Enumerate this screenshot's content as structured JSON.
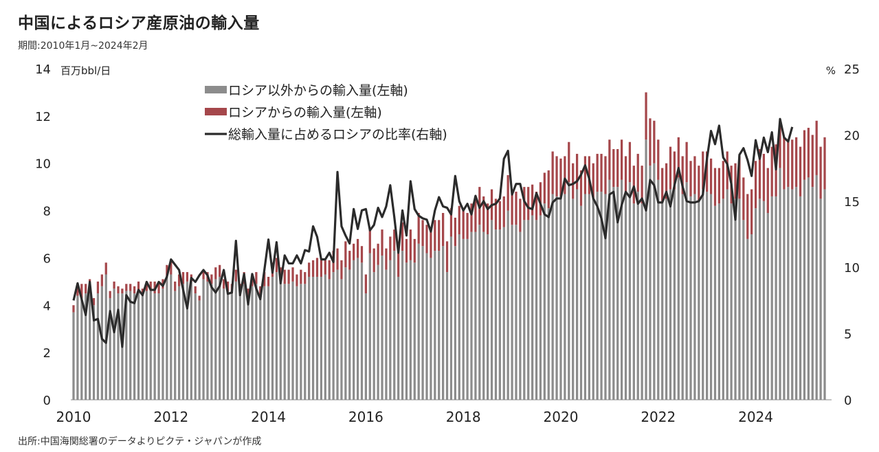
{
  "title": "中国によるロシア産原油の輸入量",
  "subtitle": "期間:2010年1月~2024年2月",
  "source": "出所:中国海関総署のデータよりピクテ・ジャパンが作成",
  "colors": {
    "other": "#8c8c8c",
    "russia": "#a5474b",
    "ratio": "#2b2b2b",
    "axis": "#888888"
  },
  "chart_data": {
    "type": "bar",
    "stacked": true,
    "period": [
      "2010-01",
      "2024-02"
    ],
    "x_tick_labels": [
      "2010",
      "2012",
      "2014",
      "2016",
      "2018",
      "2020",
      "2022",
      "2024"
    ],
    "y_left": {
      "unit": "百万bbl/日",
      "range": [
        0,
        14
      ],
      "ticks": [
        "0",
        "2",
        "4",
        "6",
        "8",
        "10",
        "12",
        "14"
      ]
    },
    "y_right": {
      "unit": "%",
      "range": [
        0,
        25
      ],
      "ticks": [
        "0",
        "5",
        "10",
        "15",
        "20",
        "25"
      ]
    },
    "legend": [
      "ロシア以外からの輸入量(左軸)",
      "ロシアからの輸入量(左軸)",
      "総輸入量に占めるロシアの比率(右軸)"
    ],
    "legend_placement": "top-left",
    "series": [
      {
        "name": "ロシア以外からの輸入量(左軸)",
        "type": "bar",
        "axis": "left",
        "values": [
          3.7,
          4.4,
          4.3,
          4.5,
          4.5,
          4.0,
          4.5,
          4.8,
          5.3,
          4.3,
          4.7,
          4.5,
          4.5,
          4.6,
          4.6,
          4.5,
          4.6,
          4.4,
          4.6,
          4.6,
          4.5,
          4.5,
          4.7,
          5.2,
          5.3,
          4.6,
          4.8,
          4.9,
          5.0,
          5.0,
          4.5,
          4.2,
          5.1,
          5.0,
          4.9,
          5.1,
          5.2,
          4.7,
          4.6,
          4.5,
          5.0,
          4.4,
          4.9,
          4.2,
          4.8,
          4.9,
          4.3,
          4.8,
          4.8,
          5.2,
          5.4,
          5.1,
          4.9,
          4.9,
          5.0,
          4.8,
          4.9,
          4.9,
          5.2,
          5.2,
          5.2,
          5.2,
          5.3,
          5.1,
          5.4,
          5.5,
          5.1,
          5.6,
          5.5,
          5.9,
          6.0,
          5.8,
          4.5,
          6.2,
          5.4,
          5.7,
          6.1,
          5.5,
          5.9,
          6.3,
          5.2,
          6.3,
          5.8,
          5.9,
          5.8,
          6.6,
          6.5,
          6.2,
          6.0,
          6.3,
          6.3,
          6.5,
          5.4,
          6.9,
          6.5,
          7.0,
          6.8,
          6.8,
          7.1,
          7.1,
          7.4,
          7.1,
          7.0,
          7.6,
          7.2,
          7.2,
          7.3,
          8.0,
          7.4,
          7.4,
          7.1,
          7.6,
          7.6,
          7.8,
          7.6,
          7.8,
          8.3,
          8.1,
          8.7,
          8.6,
          8.6,
          8.7,
          9.2,
          8.5,
          8.9,
          8.2,
          8.7,
          8.7,
          8.5,
          8.8,
          8.8,
          8.7,
          9.3,
          9.0,
          9.0,
          9.3,
          8.7,
          9.2,
          8.3,
          8.8,
          8.3,
          11.0,
          9.9,
          10.0,
          9.3,
          8.4,
          8.5,
          8.9,
          8.9,
          9.4,
          8.7,
          9.2,
          8.6,
          8.7,
          8.4,
          8.9,
          8.8,
          8.7,
          8.2,
          8.3,
          8.5,
          8.9,
          8.3,
          8.5,
          8.5,
          7.6,
          6.8,
          7.0,
          8.1,
          8.5,
          8.4,
          7.9,
          8.6,
          8.6,
          9.8,
          8.9,
          9.0,
          8.9,
          9.0,
          8.6,
          9.3,
          9.4,
          9.0,
          9.5,
          8.5,
          8.9
        ]
      },
      {
        "name": "ロシアからの輸入量(左軸)",
        "type": "bar",
        "axis": "left",
        "values": [
          0.3,
          0.5,
          0.6,
          0.4,
          0.6,
          0.3,
          0.5,
          0.5,
          0.5,
          0.3,
          0.3,
          0.3,
          0.2,
          0.3,
          0.3,
          0.3,
          0.4,
          0.3,
          0.4,
          0.4,
          0.5,
          0.4,
          0.4,
          0.5,
          0.6,
          0.4,
          0.5,
          0.5,
          0.4,
          0.3,
          0.3,
          0.2,
          0.4,
          0.4,
          0.4,
          0.5,
          0.5,
          0.4,
          0.4,
          0.4,
          0.5,
          0.5,
          0.5,
          0.5,
          0.4,
          0.5,
          0.5,
          0.6,
          0.4,
          0.6,
          0.6,
          0.5,
          0.6,
          0.6,
          0.6,
          0.5,
          0.6,
          0.5,
          0.6,
          0.7,
          0.8,
          0.7,
          0.6,
          0.8,
          0.9,
          0.9,
          0.8,
          1.1,
          0.8,
          0.7,
          0.8,
          0.7,
          0.8,
          1.0,
          1.0,
          0.9,
          1.1,
          0.9,
          1.0,
          0.9,
          1.0,
          1.2,
          1.0,
          1.3,
          1.0,
          1.3,
          1.1,
          1.2,
          1.3,
          1.3,
          1.3,
          1.4,
          1.3,
          1.2,
          1.2,
          1.2,
          1.3,
          1.1,
          1.2,
          1.5,
          1.6,
          1.5,
          1.3,
          1.3,
          1.3,
          1.2,
          1.3,
          1.5,
          1.4,
          1.4,
          1.4,
          1.4,
          1.4,
          1.3,
          1.2,
          1.4,
          1.3,
          1.6,
          1.8,
          1.7,
          1.6,
          1.6,
          1.7,
          1.5,
          1.5,
          1.5,
          1.6,
          1.6,
          1.5,
          1.6,
          1.6,
          1.6,
          1.7,
          1.6,
          1.6,
          1.7,
          1.6,
          1.7,
          1.6,
          1.6,
          1.6,
          2.0,
          2.0,
          1.8,
          1.7,
          1.4,
          1.5,
          1.8,
          1.6,
          1.7,
          1.6,
          1.7,
          1.5,
          1.6,
          1.5,
          1.6,
          1.7,
          1.5,
          1.6,
          1.5,
          1.6,
          1.6,
          1.6,
          1.5,
          1.8,
          1.8,
          1.9,
          1.9,
          2.0,
          2.1,
          2.0,
          1.9,
          2.1,
          2.2,
          2.0,
          2.2,
          2.0,
          2.1,
          2.1,
          2.1,
          2.1,
          2.1,
          2.2,
          2.3,
          2.2,
          2.2
        ]
      },
      {
        "name": "総輸入量に占めるロシアの比率(右軸)",
        "type": "line",
        "axis": "right",
        "values": [
          7.5,
          8.8,
          7.6,
          6.4,
          8.9,
          6.0,
          6.1,
          4.6,
          4.3,
          6.7,
          5.1,
          6.8,
          4.0,
          7.9,
          7.4,
          7.3,
          8.3,
          7.9,
          8.9,
          8.3,
          8.3,
          8.9,
          8.6,
          9.3,
          10.6,
          10.2,
          9.8,
          8.3,
          6.9,
          9.2,
          8.9,
          9.4,
          9.8,
          9.4,
          8.5,
          8.1,
          8.6,
          9.8,
          8.0,
          8.1,
          12.0,
          7.9,
          9.5,
          7.2,
          9.5,
          8.4,
          7.6,
          9.8,
          12.1,
          9.6,
          11.9,
          8.8,
          10.9,
          10.3,
          10.3,
          10.9,
          10.3,
          11.3,
          11.2,
          13.1,
          12.3,
          10.6,
          10.6,
          11.1,
          10.4,
          17.2,
          13.1,
          12.4,
          11.8,
          14.4,
          12.9,
          14.3,
          14.4,
          12.8,
          13.2,
          14.5,
          13.8,
          14.6,
          16.2,
          13.8,
          11.1,
          14.3,
          12.4,
          16.5,
          14.4,
          13.9,
          13.7,
          13.6,
          12.7,
          14.3,
          15.3,
          14.6,
          14.5,
          14.0,
          16.9,
          15.0,
          14.3,
          14.8,
          14.0,
          15.4,
          14.5,
          15.0,
          14.4,
          14.7,
          14.8,
          15.2,
          18.2,
          18.8,
          15.5,
          16.3,
          16.3,
          15.0,
          14.5,
          14.4,
          15.6,
          14.8,
          14.0,
          13.8,
          14.9,
          15.2,
          15.2,
          16.7,
          16.2,
          16.3,
          16.5,
          17.0,
          17.7,
          16.7,
          15.2,
          14.6,
          13.7,
          12.2,
          15.5,
          15.7,
          13.4,
          14.7,
          15.7,
          15.3,
          16.1,
          14.8,
          15.2,
          14.3,
          16.6,
          16.2,
          14.9,
          14.9,
          15.7,
          14.6,
          16.2,
          17.5,
          16.1,
          15.0,
          14.9,
          14.9,
          15.0,
          15.5,
          18.2,
          20.3,
          19.3,
          20.7,
          18.3,
          17.8,
          16.3,
          13.6,
          18.5,
          19.0,
          18.1,
          16.9,
          19.6,
          18.2,
          19.8,
          18.7,
          20.2,
          17.4,
          21.2,
          19.8,
          19.5,
          20.6
        ]
      }
    ]
  }
}
